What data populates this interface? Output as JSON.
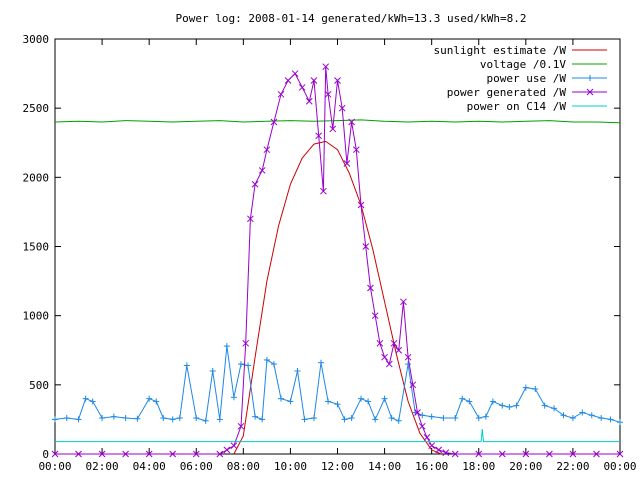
{
  "chart_data": {
    "type": "line",
    "title": "Power log: 2008-01-14 generated/kWh=13.3 used/kWh=8.2",
    "xlabel": "",
    "ylabel": "",
    "xlim": [
      0,
      24
    ],
    "ylim": [
      0,
      3000
    ],
    "x_ticks": [
      "00:00",
      "02:00",
      "04:00",
      "06:00",
      "08:00",
      "10:00",
      "12:00",
      "14:00",
      "16:00",
      "18:00",
      "20:00",
      "22:00",
      "00:00"
    ],
    "y_ticks": [
      0,
      500,
      1000,
      1500,
      2000,
      2500,
      3000
    ],
    "grid": false,
    "legend_position": "top-right",
    "series": [
      {
        "name": "sunlight estimate /W",
        "color": "#cc0000",
        "style": "line",
        "x": [
          7.6,
          8.0,
          8.5,
          9.0,
          9.5,
          10.0,
          10.5,
          11.0,
          11.5,
          12.0,
          12.5,
          13.0,
          13.5,
          14.0,
          14.5,
          15.0,
          15.5,
          16.0,
          16.4
        ],
        "y": [
          0,
          130,
          700,
          1250,
          1650,
          1950,
          2140,
          2240,
          2260,
          2200,
          2030,
          1800,
          1480,
          1100,
          720,
          380,
          150,
          30,
          0
        ]
      },
      {
        "name": "voltage /0.1V",
        "color": "#00a000",
        "style": "line",
        "x": [
          0,
          1,
          2,
          3,
          4,
          5,
          6,
          7,
          8,
          9,
          10,
          11,
          12,
          13,
          14,
          15,
          16,
          17,
          18,
          19,
          20,
          21,
          22,
          23,
          24
        ],
        "y": [
          2400,
          2405,
          2400,
          2410,
          2405,
          2400,
          2405,
          2410,
          2400,
          2405,
          2410,
          2405,
          2410,
          2415,
          2405,
          2400,
          2405,
          2400,
          2405,
          2400,
          2405,
          2410,
          2400,
          2400,
          2395
        ]
      },
      {
        "name": "power use /W",
        "color": "#1e88e5",
        "style": "line-plus",
        "x": [
          0.0,
          0.5,
          1.0,
          1.3,
          1.6,
          2.0,
          2.5,
          3.0,
          3.5,
          4.0,
          4.3,
          4.6,
          5.0,
          5.3,
          5.6,
          6.0,
          6.4,
          6.7,
          7.0,
          7.3,
          7.6,
          7.9,
          8.2,
          8.5,
          8.8,
          9.0,
          9.3,
          9.6,
          10.0,
          10.3,
          10.6,
          11.0,
          11.3,
          11.6,
          12.0,
          12.3,
          12.6,
          13.0,
          13.3,
          13.6,
          14.0,
          14.3,
          14.6,
          15.0,
          15.3,
          15.6,
          16.0,
          16.5,
          17.0,
          17.3,
          17.6,
          18.0,
          18.3,
          18.6,
          19.0,
          19.3,
          19.6,
          20.0,
          20.4,
          20.8,
          21.2,
          21.6,
          22.0,
          22.4,
          22.8,
          23.2,
          23.6,
          24.0
        ],
        "y": [
          250,
          260,
          250,
          400,
          380,
          260,
          270,
          260,
          255,
          400,
          380,
          260,
          250,
          260,
          640,
          260,
          240,
          600,
          250,
          780,
          410,
          650,
          640,
          270,
          250,
          680,
          650,
          400,
          380,
          600,
          250,
          260,
          660,
          380,
          360,
          250,
          260,
          400,
          380,
          250,
          400,
          260,
          240,
          650,
          300,
          280,
          270,
          260,
          260,
          400,
          380,
          260,
          270,
          380,
          350,
          340,
          350,
          480,
          470,
          350,
          330,
          280,
          260,
          300,
          280,
          260,
          250,
          230
        ]
      },
      {
        "name": "power generated /W",
        "color": "#9900cc",
        "style": "line-x",
        "x": [
          0.0,
          1.0,
          2.0,
          3.0,
          4.0,
          5.0,
          6.0,
          7.0,
          7.3,
          7.6,
          7.9,
          8.1,
          8.3,
          8.5,
          8.8,
          9.0,
          9.3,
          9.6,
          9.9,
          10.2,
          10.5,
          10.8,
          11.0,
          11.2,
          11.4,
          11.5,
          11.6,
          11.8,
          12.0,
          12.2,
          12.4,
          12.6,
          12.8,
          13.0,
          13.2,
          13.4,
          13.6,
          13.8,
          14.0,
          14.2,
          14.4,
          14.6,
          14.8,
          15.0,
          15.2,
          15.4,
          15.6,
          15.8,
          16.0,
          16.3,
          16.6,
          17.0,
          18.0,
          19.0,
          20.0,
          21.0,
          22.0,
          23.0,
          24.0
        ],
        "y": [
          0,
          0,
          0,
          0,
          0,
          0,
          0,
          0,
          30,
          60,
          200,
          800,
          1700,
          1950,
          2050,
          2200,
          2400,
          2600,
          2700,
          2750,
          2650,
          2550,
          2700,
          2300,
          1900,
          2800,
          2600,
          2350,
          2700,
          2500,
          2100,
          2400,
          2200,
          1800,
          1500,
          1200,
          1000,
          800,
          700,
          650,
          800,
          750,
          1100,
          700,
          500,
          300,
          200,
          120,
          60,
          30,
          10,
          0,
          0,
          0,
          0,
          0,
          0,
          0,
          0
        ]
      },
      {
        "name": "power on C14 /W",
        "color": "#00cccc",
        "style": "line",
        "x": [
          0,
          6,
          12,
          18.1,
          18.15,
          18.2,
          24
        ],
        "y": [
          90,
          90,
          90,
          90,
          180,
          90,
          90
        ]
      }
    ]
  }
}
